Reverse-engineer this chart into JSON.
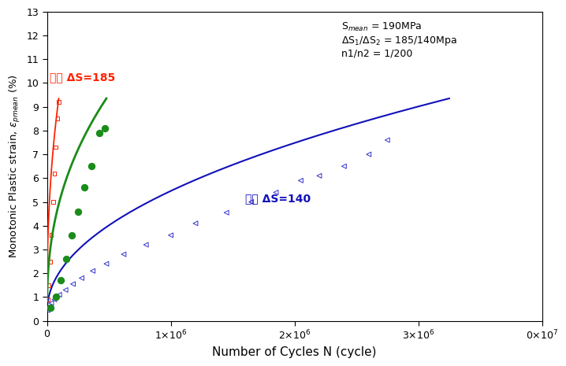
{
  "xlabel": "Number of Cycles N (cycle)",
  "xlim": [
    0,
    4000000
  ],
  "ylim": [
    0,
    13
  ],
  "annotation_line1": "S$_{mean}$ = 190MPa",
  "annotation_line2": "$\\Delta$S$_{1}$/$\\Delta$S$_{2}$ = 185/140Mpa",
  "annotation_line3": "n1/n2 = 1/200",
  "label_185": "일정 ΔS=185",
  "label_140": "일정 ΔS=140",
  "red_color": "#FF2200",
  "green_color": "#1A8C1A",
  "blue_color": "#1111BB",
  "blue_scatter_color": "#3333CC",
  "red_curve_x_max": 95000,
  "green_curve_x_max": 480000,
  "blue_curve_x_max": 3250000,
  "red_scatter_N": [
    3000,
    8000,
    15000,
    25000,
    35000,
    48000,
    60000,
    72000,
    85000,
    93000
  ],
  "red_scatter_eps": [
    0.55,
    0.9,
    1.5,
    2.5,
    3.6,
    5.0,
    6.2,
    7.3,
    8.5,
    9.2
  ],
  "green_scatter_N": [
    30000,
    70000,
    110000,
    155000,
    200000,
    250000,
    300000,
    360000,
    420000,
    470000
  ],
  "green_scatter_eps": [
    0.55,
    1.0,
    1.7,
    2.6,
    3.6,
    4.6,
    5.6,
    6.5,
    7.9,
    8.1
  ],
  "blue_scatter_N": [
    5000,
    18000,
    35000,
    60000,
    100000,
    150000,
    210000,
    280000,
    370000,
    480000,
    620000,
    800000,
    1000000,
    1200000,
    1450000,
    1650000,
    1850000,
    2050000,
    2200000,
    2400000,
    2600000,
    2750000
  ],
  "blue_scatter_eps": [
    0.45,
    0.6,
    0.75,
    0.9,
    1.1,
    1.3,
    1.55,
    1.8,
    2.1,
    2.4,
    2.8,
    3.2,
    3.6,
    4.1,
    4.55,
    5.0,
    5.4,
    5.9,
    6.1,
    6.5,
    7.0,
    7.6
  ]
}
